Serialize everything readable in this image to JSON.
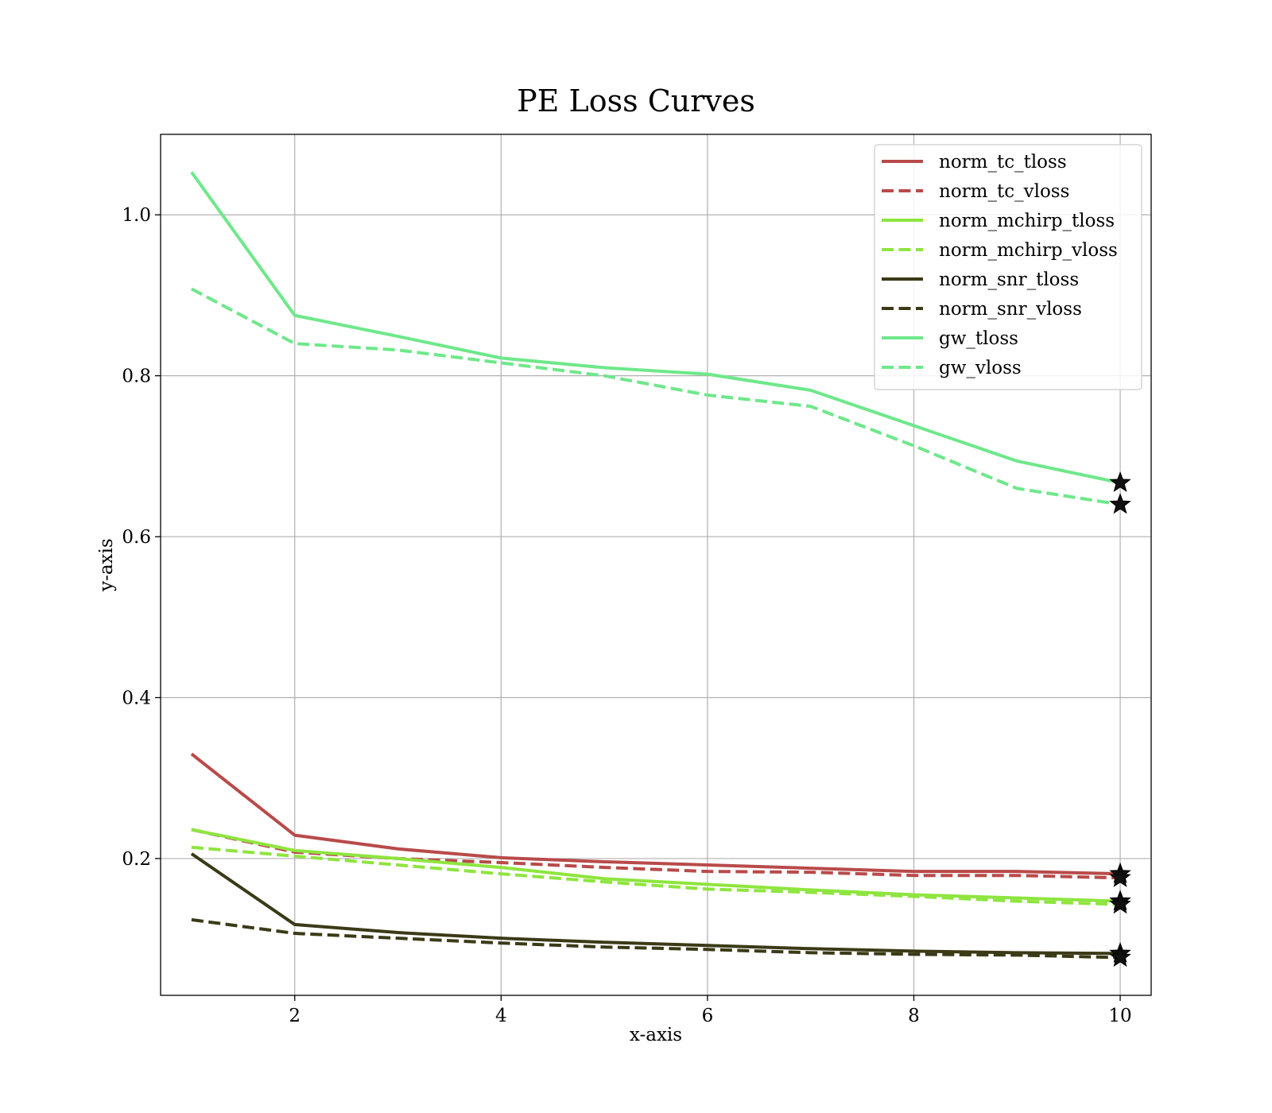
{
  "chart_data": {
    "type": "line",
    "title": "PE Loss Curves",
    "xlabel": "x-axis",
    "ylabel": "y-axis",
    "xlim": [
      0.7,
      10.3
    ],
    "ylim": [
      0.03,
      1.1
    ],
    "xticks": [
      2,
      4,
      6,
      8,
      10
    ],
    "yticks": [
      0.2,
      0.4,
      0.6,
      0.8,
      1.0
    ],
    "xtick_labels": [
      "2",
      "4",
      "6",
      "8",
      "10"
    ],
    "ytick_labels": [
      "0.2",
      "0.4",
      "0.6",
      "0.8",
      "1.0"
    ],
    "grid": true,
    "legend_position": "top-right",
    "marker_last_point": "star",
    "x": [
      1,
      2,
      3,
      4,
      5,
      6,
      7,
      8,
      9,
      10
    ],
    "series": [
      {
        "name": "norm_tc_tloss",
        "color": "#b94a4a",
        "style": "solid",
        "values": [
          0.33,
          0.229,
          0.212,
          0.201,
          0.196,
          0.192,
          0.188,
          0.184,
          0.184,
          0.181
        ]
      },
      {
        "name": "norm_tc_vloss",
        "color": "#b94a4a",
        "style": "dashed",
        "values": [
          0.236,
          0.208,
          0.2,
          0.195,
          0.189,
          0.184,
          0.183,
          0.179,
          0.179,
          0.176
        ]
      },
      {
        "name": "norm_mchirp_tloss",
        "color": "#8ee53f",
        "style": "solid",
        "values": [
          0.236,
          0.21,
          0.2,
          0.189,
          0.175,
          0.168,
          0.161,
          0.155,
          0.151,
          0.147
        ]
      },
      {
        "name": "norm_mchirp_vloss",
        "color": "#8ee53f",
        "style": "dashed",
        "values": [
          0.214,
          0.203,
          0.192,
          0.181,
          0.171,
          0.162,
          0.158,
          0.153,
          0.147,
          0.143
        ]
      },
      {
        "name": "norm_snr_tloss",
        "color": "#3a3a17",
        "style": "solid",
        "values": [
          0.206,
          0.118,
          0.108,
          0.101,
          0.096,
          0.092,
          0.088,
          0.085,
          0.083,
          0.082
        ]
      },
      {
        "name": "norm_snr_vloss",
        "color": "#3a3a17",
        "style": "dashed",
        "values": [
          0.124,
          0.107,
          0.101,
          0.095,
          0.09,
          0.087,
          0.083,
          0.081,
          0.08,
          0.077
        ]
      },
      {
        "name": "gw_tloss",
        "color": "#6ee88a",
        "style": "solid",
        "values": [
          1.053,
          0.875,
          0.849,
          0.822,
          0.81,
          0.802,
          0.782,
          0.738,
          0.694,
          0.667
        ]
      },
      {
        "name": "gw_vloss",
        "color": "#6ee88a",
        "style": "dashed",
        "values": [
          0.908,
          0.84,
          0.832,
          0.816,
          0.8,
          0.776,
          0.762,
          0.713,
          0.66,
          0.64
        ]
      }
    ]
  }
}
